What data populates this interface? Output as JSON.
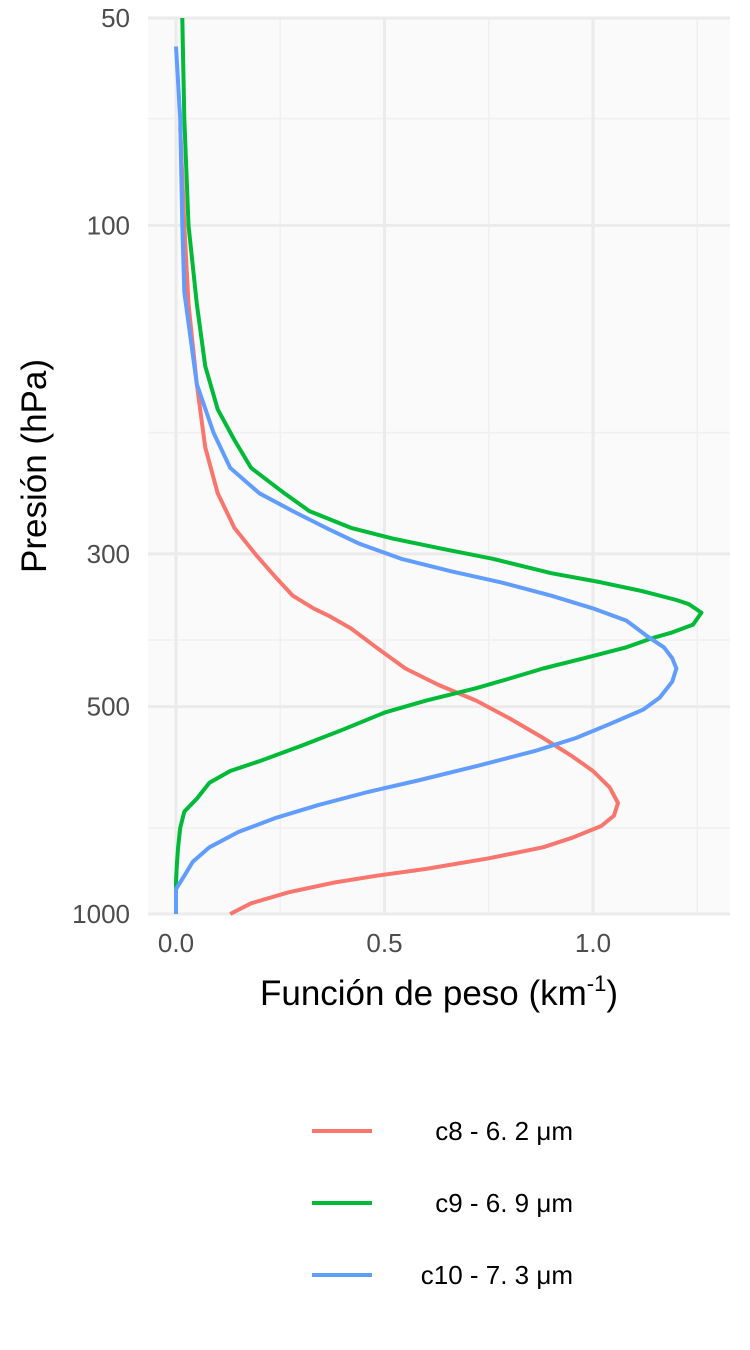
{
  "chart_data": {
    "type": "line",
    "xlabel": {
      "main": "Función de peso (km",
      "sup": "-1",
      "close": ")"
    },
    "ylabel": "Presión (hPa)",
    "xlim": [
      0,
      1.33
    ],
    "ylim": [
      50,
      1000
    ],
    "y_scale": "log-reversed",
    "x_ticks": [
      0.0,
      0.5,
      1.0
    ],
    "x_tick_labels": [
      "0.0",
      "0.5",
      "1.0"
    ],
    "y_ticks": [
      50,
      100,
      300,
      500,
      1000
    ],
    "y_tick_labels": [
      "50",
      "100",
      "300",
      "500",
      "1000"
    ],
    "x_minor_ticks": [
      0.25,
      0.75,
      1.25
    ],
    "y_minor_ticks": [
      70,
      200,
      400,
      750
    ],
    "grid": true,
    "legend_position": "bottom",
    "series": [
      {
        "name": "c8 - 6. 2 μm",
        "color": "#F8766D",
        "points": [
          [
            0.01,
            72
          ],
          [
            0.02,
            100
          ],
          [
            0.03,
            130
          ],
          [
            0.05,
            170
          ],
          [
            0.07,
            210
          ],
          [
            0.1,
            245
          ],
          [
            0.14,
            275
          ],
          [
            0.19,
            300
          ],
          [
            0.24,
            325
          ],
          [
            0.28,
            345
          ],
          [
            0.33,
            360
          ],
          [
            0.37,
            370
          ],
          [
            0.42,
            385
          ],
          [
            0.48,
            410
          ],
          [
            0.55,
            440
          ],
          [
            0.63,
            465
          ],
          [
            0.72,
            490
          ],
          [
            0.8,
            520
          ],
          [
            0.88,
            555
          ],
          [
            0.95,
            590
          ],
          [
            1.0,
            620
          ],
          [
            1.04,
            655
          ],
          [
            1.06,
            690
          ],
          [
            1.05,
            720
          ],
          [
            1.02,
            745
          ],
          [
            0.95,
            775
          ],
          [
            0.88,
            800
          ],
          [
            0.75,
            830
          ],
          [
            0.6,
            860
          ],
          [
            0.48,
            880
          ],
          [
            0.38,
            900
          ],
          [
            0.27,
            930
          ],
          [
            0.18,
            965
          ],
          [
            0.13,
            1000
          ]
        ]
      },
      {
        "name": "c9 - 6. 9 μm",
        "color": "#00BA38",
        "points": [
          [
            0.015,
            50
          ],
          [
            0.02,
            70
          ],
          [
            0.03,
            100
          ],
          [
            0.05,
            130
          ],
          [
            0.07,
            160
          ],
          [
            0.1,
            185
          ],
          [
            0.14,
            205
          ],
          [
            0.18,
            225
          ],
          [
            0.26,
            245
          ],
          [
            0.32,
            260
          ],
          [
            0.42,
            275
          ],
          [
            0.52,
            285
          ],
          [
            0.64,
            295
          ],
          [
            0.76,
            305
          ],
          [
            0.9,
            320
          ],
          [
            1.02,
            330
          ],
          [
            1.12,
            340
          ],
          [
            1.2,
            350
          ],
          [
            1.23,
            355
          ],
          [
            1.26,
            365
          ],
          [
            1.24,
            380
          ],
          [
            1.19,
            390
          ],
          [
            1.14,
            398
          ],
          [
            1.08,
            410
          ],
          [
            0.98,
            425
          ],
          [
            0.88,
            440
          ],
          [
            0.8,
            455
          ],
          [
            0.72,
            470
          ],
          [
            0.6,
            490
          ],
          [
            0.5,
            510
          ],
          [
            0.4,
            540
          ],
          [
            0.3,
            570
          ],
          [
            0.2,
            600
          ],
          [
            0.13,
            620
          ],
          [
            0.08,
            645
          ],
          [
            0.05,
            680
          ],
          [
            0.02,
            710
          ],
          [
            0.01,
            750
          ],
          [
            0.005,
            800
          ],
          [
            0.002,
            850
          ],
          [
            0.0,
            900
          ],
          [
            0.0,
            1000
          ]
        ]
      },
      {
        "name": "c10 - 7. 3 μm",
        "color": "#619CFF",
        "points": [
          [
            0.0,
            55
          ],
          [
            0.01,
            70
          ],
          [
            0.015,
            100
          ],
          [
            0.02,
            125
          ],
          [
            0.05,
            170
          ],
          [
            0.09,
            200
          ],
          [
            0.13,
            225
          ],
          [
            0.2,
            245
          ],
          [
            0.28,
            260
          ],
          [
            0.36,
            275
          ],
          [
            0.44,
            290
          ],
          [
            0.54,
            305
          ],
          [
            0.66,
            318
          ],
          [
            0.78,
            330
          ],
          [
            0.9,
            345
          ],
          [
            1.0,
            360
          ],
          [
            1.08,
            375
          ],
          [
            1.13,
            395
          ],
          [
            1.17,
            410
          ],
          [
            1.19,
            425
          ],
          [
            1.2,
            440
          ],
          [
            1.19,
            460
          ],
          [
            1.16,
            485
          ],
          [
            1.12,
            505
          ],
          [
            1.04,
            530
          ],
          [
            0.96,
            555
          ],
          [
            0.86,
            580
          ],
          [
            0.72,
            610
          ],
          [
            0.58,
            640
          ],
          [
            0.46,
            665
          ],
          [
            0.34,
            695
          ],
          [
            0.24,
            725
          ],
          [
            0.15,
            760
          ],
          [
            0.08,
            800
          ],
          [
            0.04,
            840
          ],
          [
            0.02,
            880
          ],
          [
            0.0,
            920
          ],
          [
            0.0,
            1000
          ]
        ]
      }
    ]
  }
}
